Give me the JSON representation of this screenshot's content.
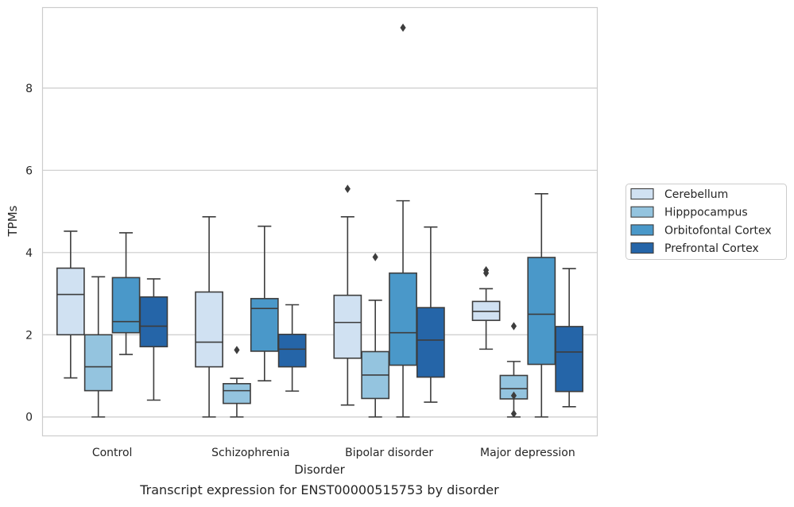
{
  "chart_data": {
    "type": "box",
    "title": "Transcript expression for ENST00000515753 by disorder",
    "xlabel": "Disorder",
    "ylabel": "TPMs",
    "ylim": [
      -0.45,
      9.95
    ],
    "yticks": [
      0,
      2,
      4,
      6,
      8
    ],
    "grid": "horizontal",
    "legend_position": "right",
    "categories": [
      "Control",
      "Schizophrenia",
      "Bipolar disorder",
      "Major depression"
    ],
    "series": [
      {
        "name": "Cerebellum",
        "color": "#d0e1f2",
        "boxes": [
          {
            "whisker_low": 0.95,
            "q1": 2.0,
            "median": 2.98,
            "q3": 3.62,
            "whisker_high": 4.52,
            "outliers": []
          },
          {
            "whisker_low": 0.0,
            "q1": 1.22,
            "median": 1.82,
            "q3": 3.04,
            "whisker_high": 4.87,
            "outliers": []
          },
          {
            "whisker_low": 0.29,
            "q1": 1.43,
            "median": 2.3,
            "q3": 2.96,
            "whisker_high": 4.87,
            "outliers": [
              5.55
            ]
          },
          {
            "whisker_low": 1.65,
            "q1": 2.35,
            "median": 2.57,
            "q3": 2.81,
            "whisker_high": 3.12,
            "outliers": [
              3.5,
              3.57
            ]
          }
        ]
      },
      {
        "name": "Hipppocampus",
        "color": "#94c4df",
        "boxes": [
          {
            "whisker_low": 0.0,
            "q1": 0.64,
            "median": 1.22,
            "q3": 2.0,
            "whisker_high": 3.41,
            "outliers": []
          },
          {
            "whisker_low": 0.0,
            "q1": 0.33,
            "median": 0.64,
            "q3": 0.81,
            "whisker_high": 0.94,
            "outliers": [
              1.63
            ]
          },
          {
            "whisker_low": 0.0,
            "q1": 0.45,
            "median": 1.02,
            "q3": 1.59,
            "whisker_high": 2.84,
            "outliers": [
              3.89
            ]
          },
          {
            "whisker_low": 0.0,
            "q1": 0.44,
            "median": 0.69,
            "q3": 1.01,
            "whisker_high": 1.35,
            "outliers": [
              2.21,
              0.52,
              0.08
            ]
          }
        ]
      },
      {
        "name": "Orbitofontal Cortex",
        "color": "#4a98c9",
        "boxes": [
          {
            "whisker_low": 1.52,
            "q1": 2.05,
            "median": 2.32,
            "q3": 3.39,
            "whisker_high": 4.48,
            "outliers": []
          },
          {
            "whisker_low": 0.88,
            "q1": 1.6,
            "median": 2.64,
            "q3": 2.88,
            "whisker_high": 4.64,
            "outliers": []
          },
          {
            "whisker_low": 0.0,
            "q1": 1.26,
            "median": 2.05,
            "q3": 3.5,
            "whisker_high": 5.26,
            "outliers": [
              9.47
            ]
          },
          {
            "whisker_low": 0.0,
            "q1": 1.28,
            "median": 2.5,
            "q3": 3.88,
            "whisker_high": 5.43,
            "outliers": []
          }
        ]
      },
      {
        "name": "Prefrontal Cortex",
        "color": "#2565a8",
        "boxes": [
          {
            "whisker_low": 0.41,
            "q1": 1.71,
            "median": 2.21,
            "q3": 2.92,
            "whisker_high": 3.36,
            "outliers": []
          },
          {
            "whisker_low": 0.63,
            "q1": 1.22,
            "median": 1.65,
            "q3": 2.01,
            "whisker_high": 2.73,
            "outliers": []
          },
          {
            "whisker_low": 0.36,
            "q1": 0.97,
            "median": 1.87,
            "q3": 2.66,
            "whisker_high": 4.62,
            "outliers": []
          },
          {
            "whisker_low": 0.25,
            "q1": 0.62,
            "median": 1.58,
            "q3": 2.2,
            "whisker_high": 3.61,
            "outliers": []
          }
        ]
      }
    ]
  }
}
